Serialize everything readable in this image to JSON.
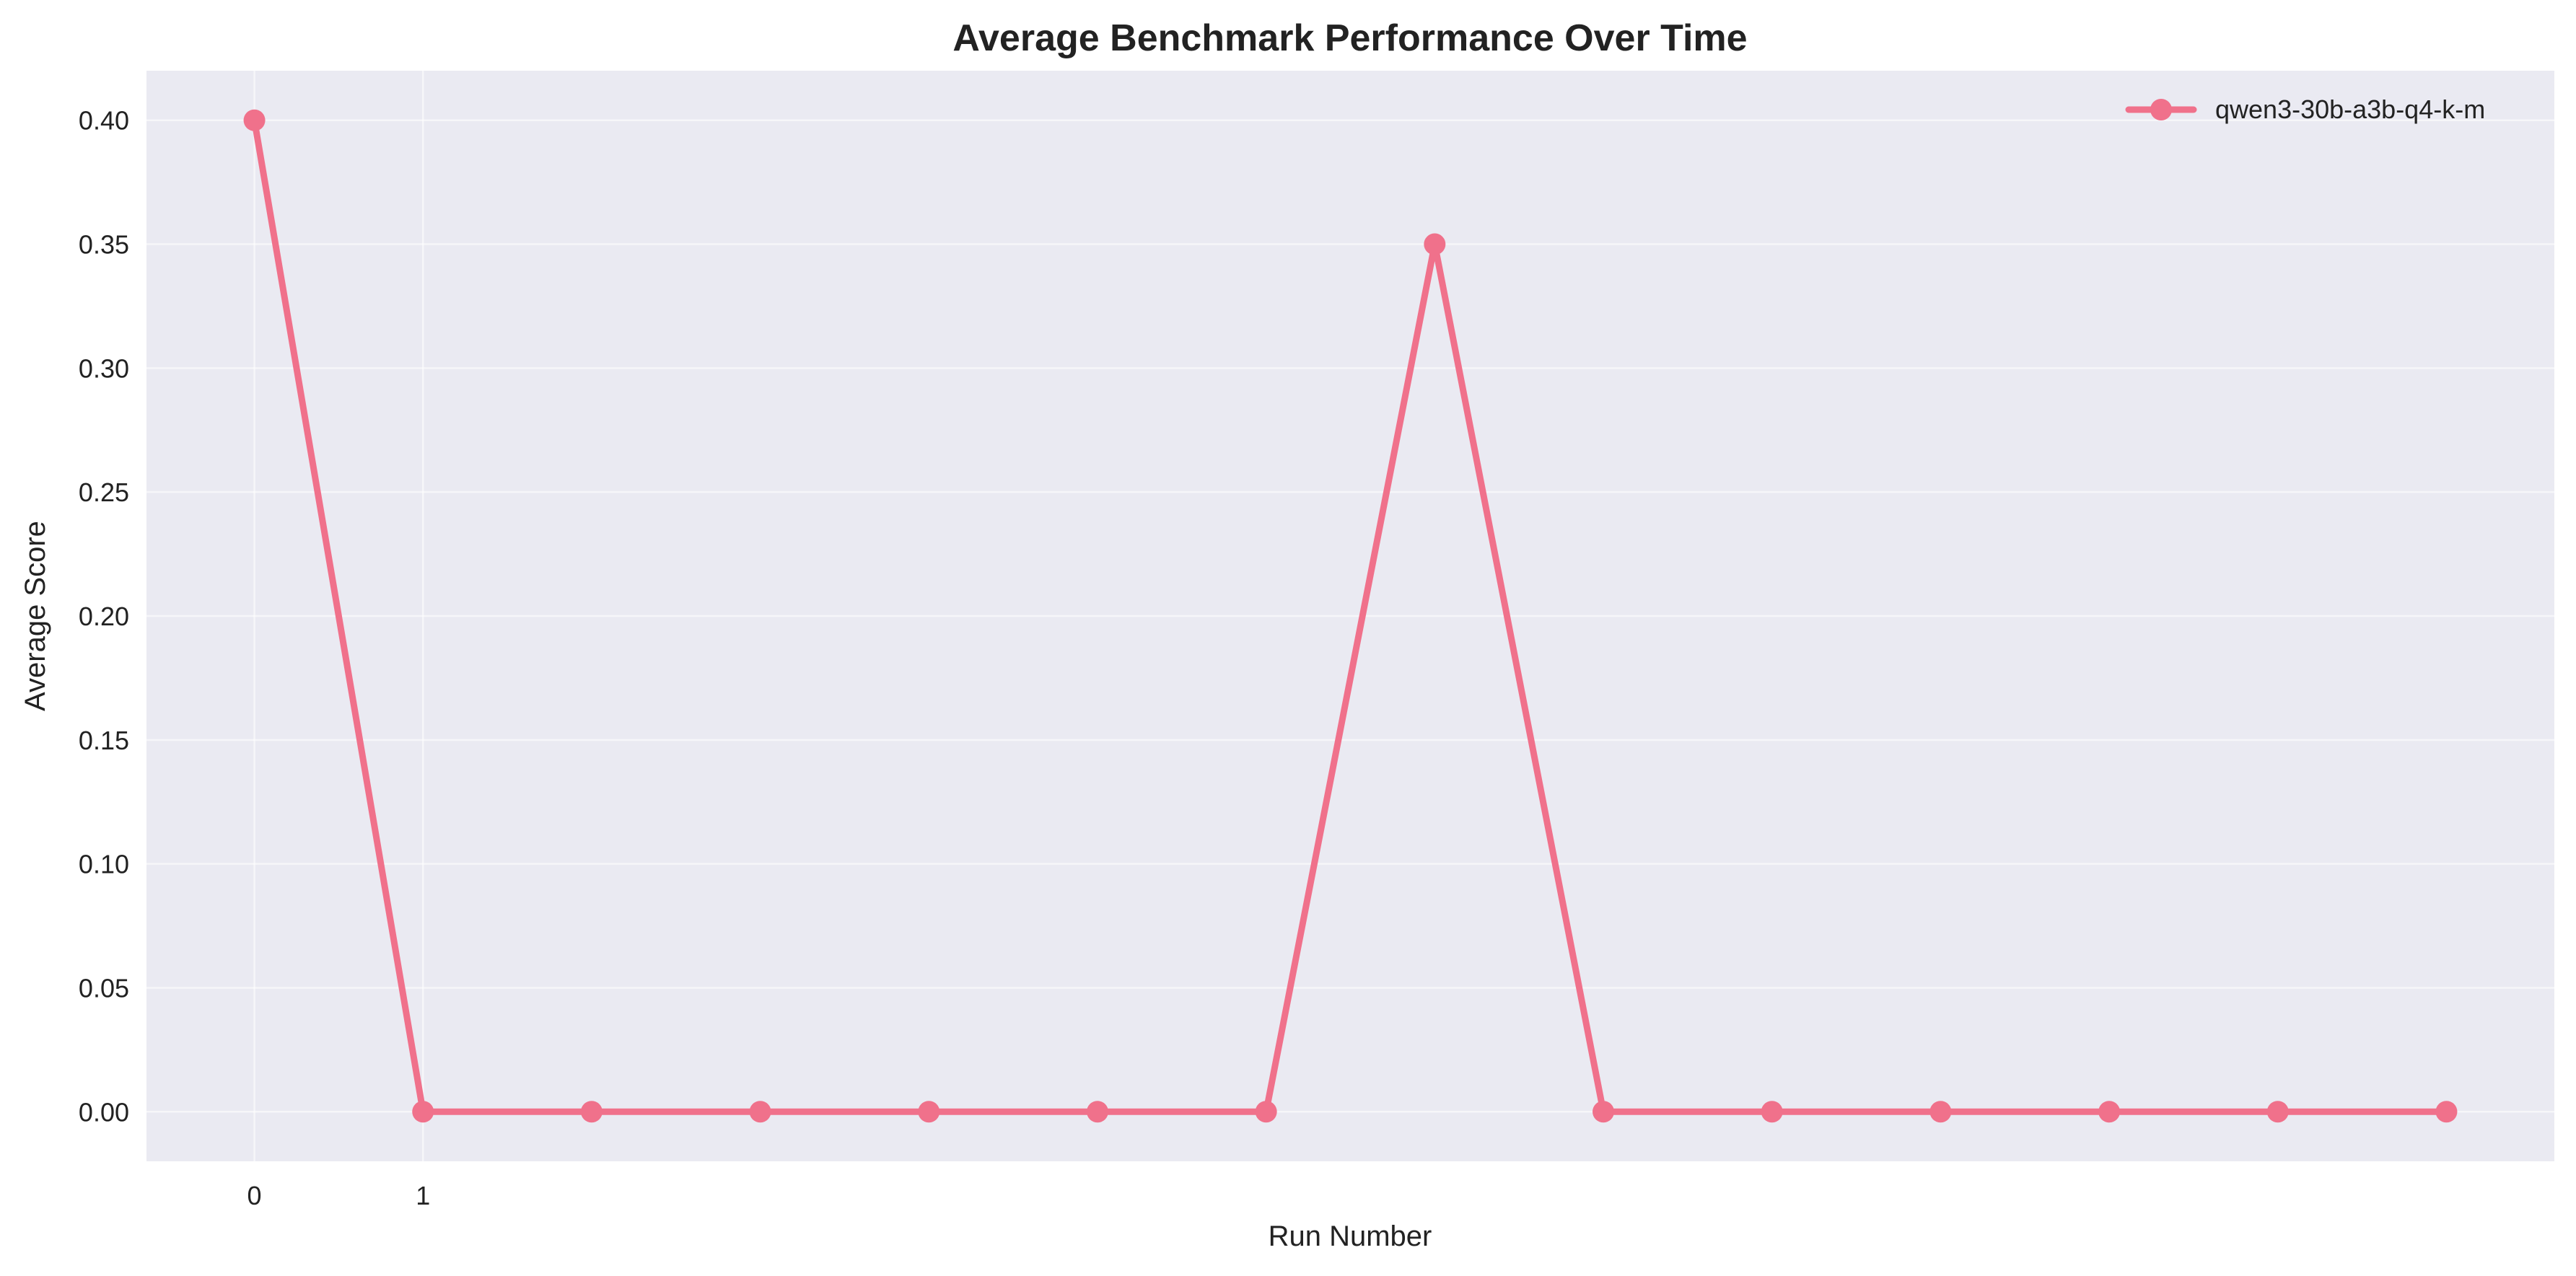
{
  "chart_data": {
    "type": "line",
    "title": "Average Benchmark Performance Over Time",
    "xlabel": "Run Number",
    "ylabel": "Average Score",
    "x": [
      0,
      1,
      2,
      3,
      4,
      5,
      6,
      7,
      8,
      9,
      10,
      11,
      12,
      13
    ],
    "x_tick_labels": [
      "0",
      "1"
    ],
    "xlim": [
      -0.64,
      13.64
    ],
    "ylim": [
      -0.02,
      0.42
    ],
    "y_ticks": [
      0.0,
      0.05,
      0.1,
      0.15,
      0.2,
      0.25,
      0.3,
      0.35,
      0.4
    ],
    "y_tick_labels": [
      "0.00",
      "0.05",
      "0.10",
      "0.15",
      "0.20",
      "0.25",
      "0.30",
      "0.35",
      "0.40"
    ],
    "series": [
      {
        "name": "qwen3-30b-a3b-q4-k-m",
        "values": [
          0.4,
          0.0,
          0.0,
          0.0,
          0.0,
          0.0,
          0.0,
          0.35,
          0.0,
          0.0,
          0.0,
          0.0,
          0.0,
          0.0
        ]
      }
    ],
    "grid": true,
    "legend_position": "top-right",
    "colors": {
      "series": "#f0718b",
      "plot_background": "#eaeaf2",
      "grid": "#ffffff",
      "text": "#222222"
    }
  }
}
